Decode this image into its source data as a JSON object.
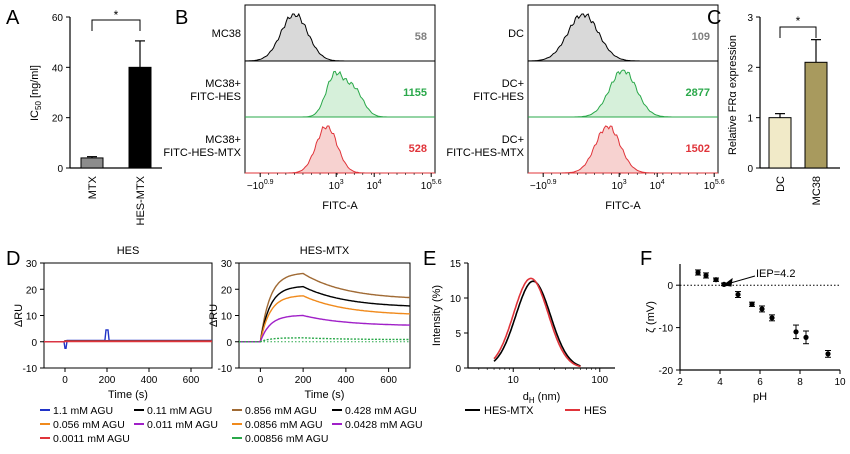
{
  "colors": {
    "black": "#000000",
    "grey_fill": "#d9d9d9",
    "grey_label": "#808080",
    "green": "#2aa84a",
    "green_fill": "#d6f0da",
    "red": "#e0343a",
    "red_fill": "#f7d2d0",
    "blue": "#2033c8",
    "orange": "#f08a1c",
    "purple": "#a020c8",
    "brown": "#a06a34",
    "dc_fill": "#f1eac8",
    "mc38_fill": "#a89a5e",
    "mtx_fill": "#8c8c8c"
  },
  "chart_data": [
    {
      "panel": "A",
      "type": "bar",
      "categories": [
        "MTX",
        "HES-MTX"
      ],
      "values": [
        4,
        40
      ],
      "errors": [
        0.5,
        10.5
      ],
      "ylabel": "IC50 [ng/ml]",
      "ylim": [
        0,
        60
      ],
      "yticks": [
        "0",
        "20",
        "40",
        "60"
      ],
      "significance": "*"
    },
    {
      "panel": "B",
      "type": "histogram",
      "xlabel": "FITC-A",
      "xticks": [
        "−10^0.9",
        "10^3",
        "10^4",
        "10^5.6"
      ],
      "groups": [
        {
          "rows": [
            {
              "label": [
                "MC38"
              ],
              "value": "58",
              "color": "grey"
            },
            {
              "label": [
                "MC38+",
                "FITC-HES"
              ],
              "value": "1155",
              "color": "green"
            },
            {
              "label": [
                "MC38+",
                "FITC-HES-MTX"
              ],
              "value": "528",
              "color": "red"
            }
          ]
        },
        {
          "rows": [
            {
              "label": [
                "DC"
              ],
              "value": "109",
              "color": "grey"
            },
            {
              "label": [
                "DC+",
                "FITC-HES"
              ],
              "value": "2877",
              "color": "green"
            },
            {
              "label": [
                "DC+",
                "FITC-HES-MTX"
              ],
              "value": "1502",
              "color": "red"
            }
          ]
        }
      ]
    },
    {
      "panel": "C",
      "type": "bar",
      "categories": [
        "DC",
        "MC38"
      ],
      "values": [
        1.0,
        2.1
      ],
      "errors": [
        0.08,
        0.45
      ],
      "ylabel": "Relative FRα expression",
      "ylim": [
        0,
        3
      ],
      "yticks": [
        "0",
        "1",
        "2",
        "3"
      ],
      "significance": "*"
    },
    {
      "panel": "D",
      "type": "line",
      "subplots": [
        {
          "title": "HES",
          "xlabel": "Time (s)",
          "ylabel": "ΔRU",
          "xlim": [
            -100,
            700
          ],
          "ylim": [
            -10,
            30
          ],
          "xticks": [
            "0",
            "200",
            "400",
            "600"
          ],
          "yticks": [
            "-10",
            "0",
            "10",
            "20",
            "30"
          ],
          "series": [
            {
              "color": "blue",
              "plateau": 0.5,
              "spike": 4.5
            },
            {
              "color": "black",
              "plateau": 0.4
            },
            {
              "color": "orange",
              "plateau": 0.3
            },
            {
              "color": "purple",
              "plateau": 0.2
            },
            {
              "color": "red",
              "plateau": 0.1
            }
          ]
        },
        {
          "title": "HES-MTX",
          "xlabel": "Time (s)",
          "ylabel": "ΔRU",
          "xlim": [
            -100,
            700
          ],
          "ylim": [
            -10,
            30
          ],
          "xticks": [
            "0",
            "200",
            "400",
            "600"
          ],
          "yticks": [
            "-10",
            "0",
            "10",
            "20",
            "30"
          ],
          "series": [
            {
              "color": "brown",
              "plateau": 26,
              "end": 16
            },
            {
              "color": "black",
              "plateau": 21,
              "end": 13
            },
            {
              "color": "orange",
              "plateau": 17.5,
              "end": 10
            },
            {
              "color": "purple",
              "plateau": 10,
              "end": 6
            },
            {
              "color": "green",
              "plateau": 1.5,
              "end": 0.8,
              "dotted": true
            }
          ]
        }
      ],
      "legend": [
        {
          "label": "1.1 mM AGU",
          "color": "blue"
        },
        {
          "label": "0.11 mM AGU",
          "color": "black"
        },
        {
          "label": "0.856 mM AGU",
          "color": "brown"
        },
        {
          "label": "0.428 mM AGU",
          "color": "black"
        },
        {
          "label": "0.056 mM AGU",
          "color": "orange"
        },
        {
          "label": "0.011 mM AGU",
          "color": "purple"
        },
        {
          "label": "0.0856 mM AGU",
          "color": "orange"
        },
        {
          "label": "0.0428 mM AGU",
          "color": "purple"
        },
        {
          "label": "0.0011 mM AGU",
          "color": "red"
        },
        {
          "label": "0.00856 mM AGU",
          "color": "green"
        }
      ]
    },
    {
      "panel": "E",
      "type": "line",
      "xlabel": "dH (nm)",
      "ylabel": "Intensity (%)",
      "xscale": "log",
      "xticks": [
        "10",
        "100"
      ],
      "yticks": [
        "0",
        "5",
        "10",
        "15"
      ],
      "ylim": [
        0,
        15
      ],
      "series": [
        {
          "name": "HES-MTX",
          "color": "black",
          "peak_x": 17,
          "peak_y": 12.4
        },
        {
          "name": "HES",
          "color": "red",
          "peak_x": 16,
          "peak_y": 12.8
        }
      ]
    },
    {
      "panel": "F",
      "type": "scatter",
      "xlabel": "pH",
      "ylabel": "ζ (mV)",
      "xlim": [
        2,
        10
      ],
      "ylim": [
        -20,
        5
      ],
      "xticks": [
        "2",
        "4",
        "6",
        "8",
        "10"
      ],
      "yticks": [
        "0",
        "-10",
        "-20"
      ],
      "annotation": "IEP=4.2",
      "x": [
        2.9,
        3.3,
        3.8,
        4.2,
        4.9,
        5.6,
        6.1,
        6.6,
        7.8,
        8.3,
        9.4
      ],
      "y": [
        3.0,
        2.3,
        1.3,
        0.2,
        -2.2,
        -4.5,
        -5.6,
        -7.7,
        -11.0,
        -12.3,
        -16.2
      ],
      "err": [
        0.6,
        0.6,
        0.4,
        0.3,
        0.7,
        0.5,
        0.7,
        0.7,
        1.6,
        1.5,
        0.8
      ]
    }
  ]
}
